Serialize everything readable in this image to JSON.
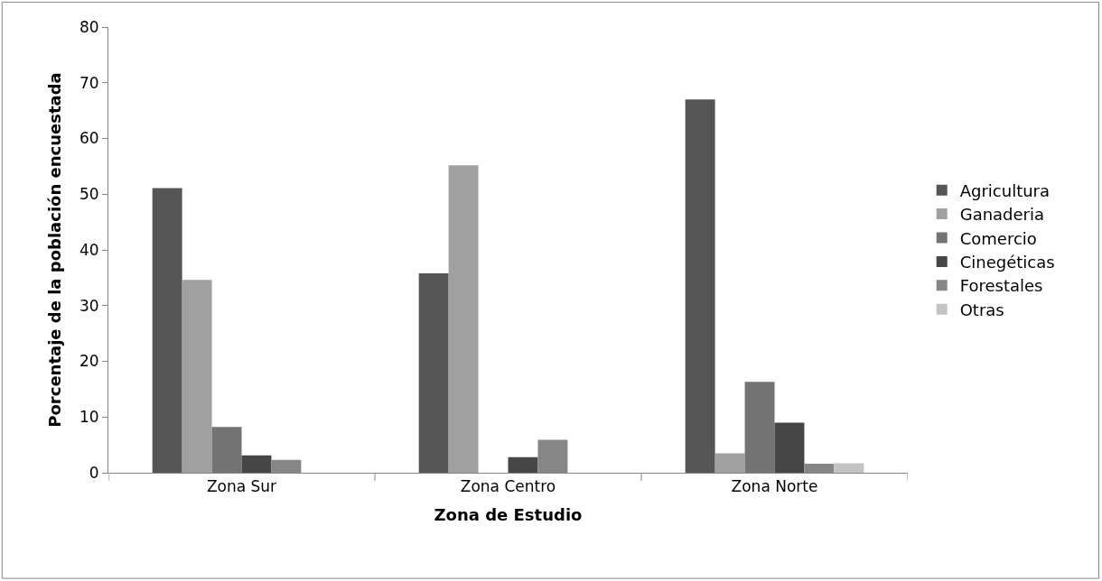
{
  "chart_data": {
    "type": "bar",
    "xlabel": "Zona de Estudio",
    "ylabel": "Porcentaje de la población encuestada",
    "categories": [
      "Zona Sur",
      "Zona Centro",
      "Zona Norte"
    ],
    "series": [
      {
        "name": "Agricultura",
        "color": "#555555",
        "values": [
          51.1,
          35.8,
          67.0
        ]
      },
      {
        "name": "Ganaderia",
        "color": "#a0a0a0",
        "values": [
          34.6,
          55.2,
          3.5
        ]
      },
      {
        "name": "Comercio",
        "color": "#737373",
        "values": [
          8.2,
          0,
          16.3
        ]
      },
      {
        "name": "Cinegéticas",
        "color": "#464646",
        "values": [
          3.1,
          2.8,
          9.0
        ]
      },
      {
        "name": "Forestales",
        "color": "#868686",
        "values": [
          2.3,
          5.9,
          1.6
        ]
      },
      {
        "name": "Otras",
        "color": "#c3c3c3",
        "values": [
          0,
          0,
          1.7
        ]
      }
    ],
    "ylim": [
      0,
      80
    ],
    "yticks": [
      0,
      10,
      20,
      30,
      40,
      50,
      60,
      70,
      80
    ],
    "legend": "right"
  }
}
